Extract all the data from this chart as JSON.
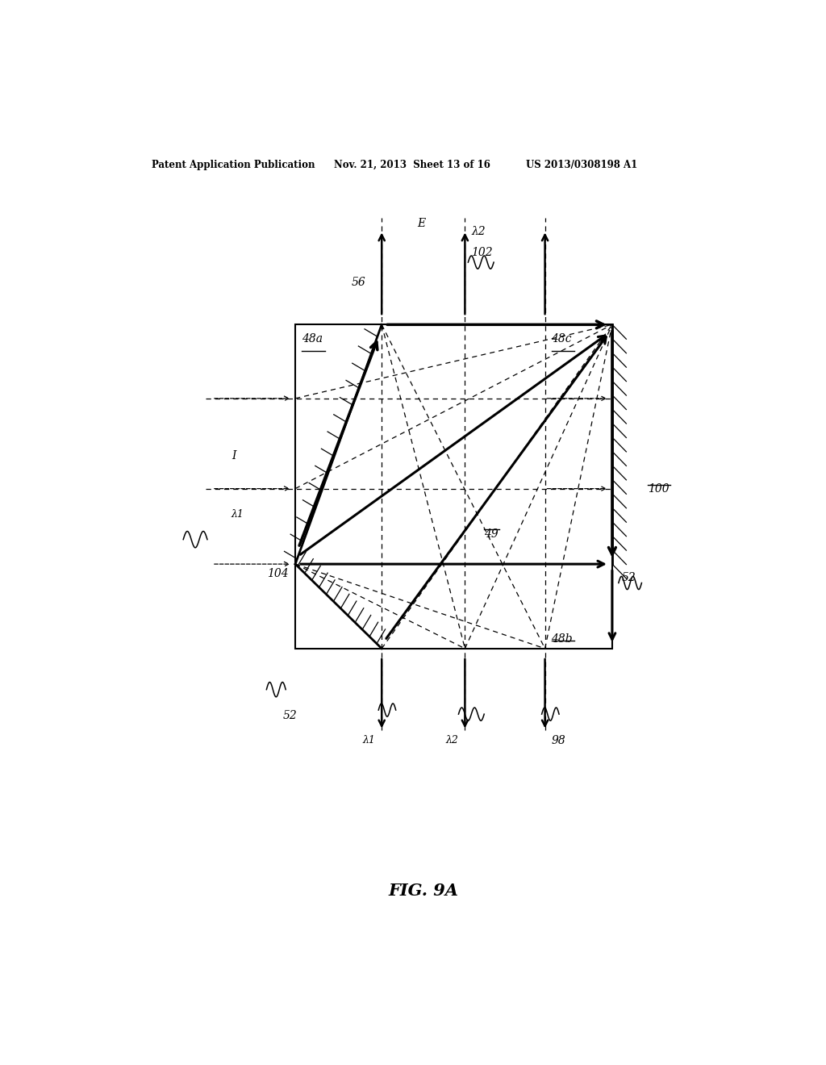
{
  "bg_color": "#ffffff",
  "header_left": "Patent Application Publication",
  "header_mid": "Nov. 21, 2013  Sheet 13 of 16",
  "header_right": "US 2013/0308198 A1",
  "fig_label": "FIG. 9A",
  "BL": 0.3,
  "BR": 0.795,
  "BT": 0.76,
  "BB": 0.365,
  "c1": 0.435,
  "c2": 0.565,
  "c3": 0.69,
  "r1": 0.67,
  "r2": 0.56,
  "r3": 0.468
}
